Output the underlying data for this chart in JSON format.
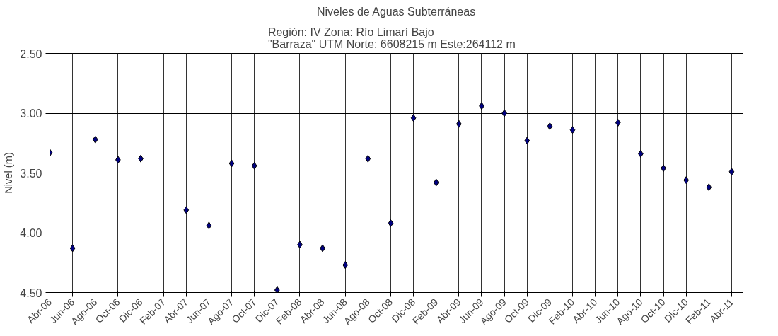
{
  "chart_data": {
    "type": "scatter",
    "title": "Niveles de Aguas Subterráneas",
    "subtitle": "Región: IV  Zona: Río Limarí Bajo\n\"Barraza\"  UTM Norte: 6608215 m   Este:264112 m",
    "ylabel": "Nivel (m)",
    "categories": [
      "Abr-06",
      "Jun-06",
      "Ago-06",
      "Oct-06",
      "Dic-06",
      "Feb-07",
      "Abr-07",
      "Jun-07",
      "Ago-07",
      "Oct-07",
      "Dic-07",
      "Feb-08",
      "Abr-08",
      "Jun-08",
      "Ago-08",
      "Oct-08",
      "Dic-08",
      "Feb-09",
      "Abr-09",
      "Jun-09",
      "Ago-09",
      "Oct-09",
      "Dic-09",
      "Feb-10",
      "Abr-10",
      "Jun-10",
      "Ago-10",
      "Oct-10",
      "Dic-10",
      "Feb-11",
      "Abr-11"
    ],
    "series": [
      {
        "color": "#000080",
        "values": [
          3.33,
          4.13,
          3.22,
          3.39,
          3.38,
          null,
          3.81,
          3.94,
          3.42,
          3.44,
          4.48,
          4.1,
          4.13,
          4.27,
          3.38,
          3.92,
          3.04,
          3.58,
          3.09,
          2.94,
          3.0,
          3.23,
          3.11,
          3.14,
          null,
          3.08,
          3.34,
          3.46,
          3.56,
          3.62,
          3.49
        ]
      }
    ],
    "ylim": [
      4.5,
      2.5
    ],
    "yticks": [
      {
        "value": 2.5,
        "label": "2.50"
      },
      {
        "value": 3.0,
        "label": "3.00"
      },
      {
        "value": 3.5,
        "label": "3.50"
      },
      {
        "value": 4.0,
        "label": "4.00"
      },
      {
        "value": 4.5,
        "label": "4.50"
      }
    ],
    "grid": true,
    "marker": "diamond"
  }
}
